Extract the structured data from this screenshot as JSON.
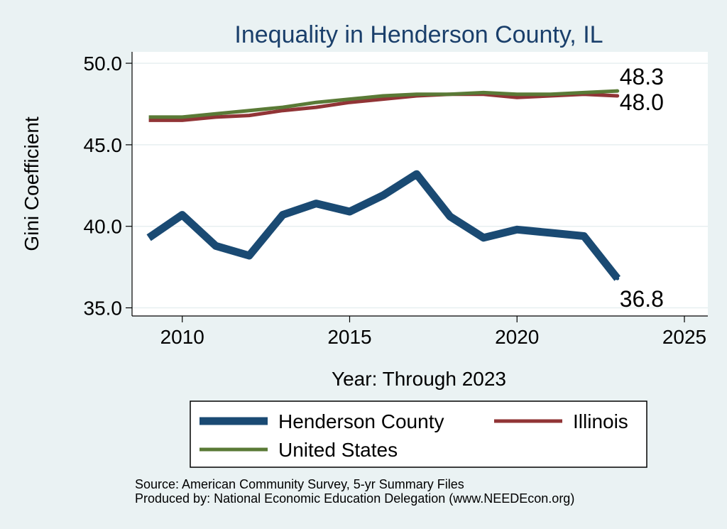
{
  "chart_data": {
    "type": "line",
    "title": "Inequality in Henderson County, IL",
    "xlabel": "Year: Through 2023",
    "ylabel": "Gini Coefficient",
    "xlim": [
      2008.5,
      2025.7
    ],
    "ylim": [
      34.5,
      50.7
    ],
    "xticks": [
      2010,
      2015,
      2020,
      2025
    ],
    "yticks": [
      35.0,
      40.0,
      45.0,
      50.0
    ],
    "ytick_labels": [
      "35.0",
      "40.0",
      "45.0",
      "50.0"
    ],
    "grid": true,
    "legend_position": "bottom",
    "x": [
      2009,
      2010,
      2011,
      2012,
      2013,
      2014,
      2015,
      2016,
      2017,
      2018,
      2019,
      2020,
      2021,
      2022,
      2023
    ],
    "series": [
      {
        "name": "Henderson County",
        "color": "#1a4a73",
        "values": [
          39.3,
          40.7,
          38.8,
          38.2,
          40.7,
          41.4,
          40.9,
          41.9,
          43.2,
          40.6,
          39.3,
          39.8,
          39.6,
          39.4,
          36.8
        ],
        "end_label": "36.8"
      },
      {
        "name": "Illinois",
        "color": "#913436",
        "values": [
          46.5,
          46.5,
          46.7,
          46.8,
          47.1,
          47.3,
          47.6,
          47.8,
          48.0,
          48.1,
          48.1,
          47.9,
          48.0,
          48.1,
          48.0
        ],
        "end_label": "48.0"
      },
      {
        "name": "United States",
        "color": "#5a7a36",
        "values": [
          46.7,
          46.7,
          46.9,
          47.1,
          47.3,
          47.6,
          47.8,
          48.0,
          48.1,
          48.1,
          48.2,
          48.1,
          48.1,
          48.2,
          48.3
        ],
        "end_label": "48.3"
      }
    ]
  },
  "legend": {
    "items": [
      "Henderson County",
      "Illinois",
      "United States"
    ]
  },
  "notes": {
    "source": "Source: American Community Survey, 5-yr Summary Files",
    "produced_by": "Produced by: National Economic Education Delegation (www.NEEDEcon.org)"
  }
}
